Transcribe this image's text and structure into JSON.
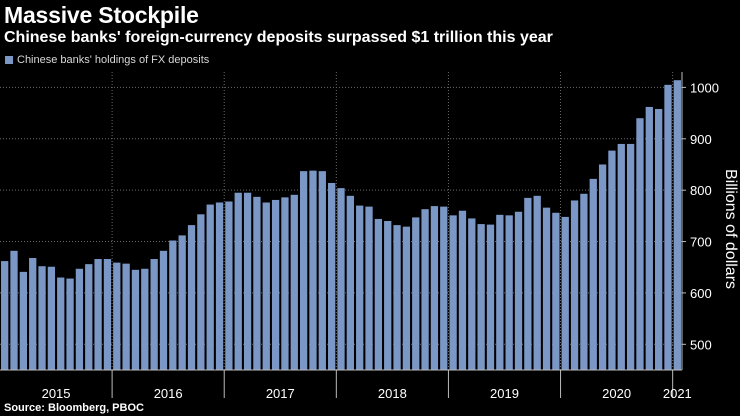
{
  "header": {
    "title": "Massive Stockpile",
    "subtitle": "Chinese banks' foreign-currency deposits surpassed $1 trillion this year"
  },
  "legend": {
    "label": "Chinese banks' holdings of FX deposits"
  },
  "footer": {
    "source": "Source: Bloomberg, PBOC"
  },
  "colors": {
    "background": "#000000",
    "bar": "#7b97c6",
    "grid": "#6a6a6a",
    "axis": "#bbbbbb",
    "text": "#ffffff"
  },
  "chart_data": {
    "type": "bar",
    "title": "Chinese banks' foreign-currency deposits surpassed $1 trillion this year",
    "xlabel": "",
    "ylabel": "Billions of dollars",
    "ylim": [
      450,
      1030
    ],
    "yticks": [
      500,
      600,
      700,
      800,
      900,
      1000
    ],
    "x_year_labels": [
      "2015",
      "2016",
      "2017",
      "2018",
      "2019",
      "2020",
      "2021"
    ],
    "start": "2015-01",
    "series": [
      {
        "name": "Chinese banks' holdings of FX deposits",
        "values": [
          662,
          682,
          641,
          668,
          652,
          651,
          630,
          628,
          647,
          656,
          666,
          666,
          659,
          657,
          645,
          647,
          666,
          682,
          702,
          712,
          732,
          753,
          772,
          776,
          778,
          795,
          795,
          787,
          776,
          781,
          786,
          791,
          837,
          838,
          837,
          814,
          804,
          789,
          770,
          768,
          744,
          740,
          732,
          729,
          747,
          763,
          769,
          768,
          751,
          760,
          745,
          734,
          733,
          752,
          751,
          758,
          785,
          789,
          766,
          756,
          748,
          780,
          793,
          822,
          850,
          877,
          890,
          890,
          940,
          962,
          958,
          1005,
          1014
        ]
      }
    ]
  }
}
